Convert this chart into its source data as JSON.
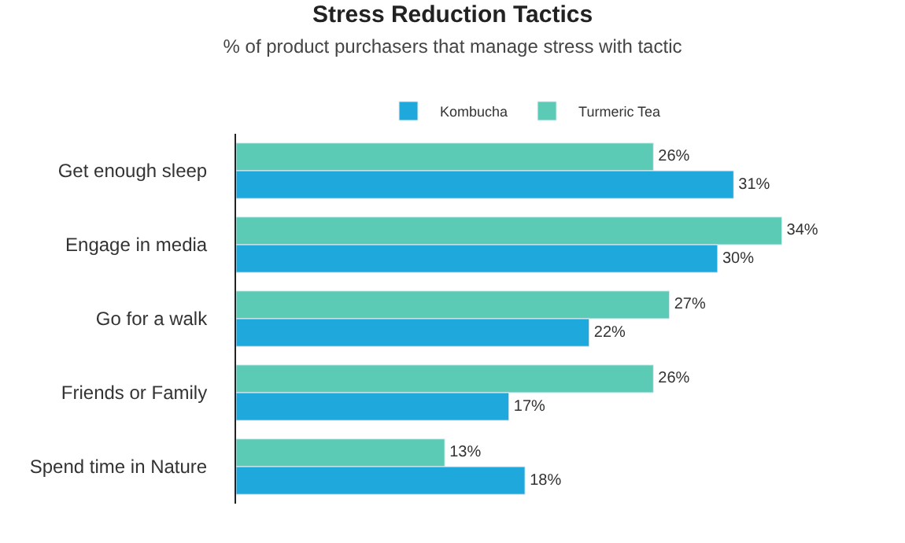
{
  "chart_data": {
    "type": "bar",
    "orientation": "horizontal",
    "title": "Stress Reduction Tactics",
    "subtitle": "% of product purchasers that manage stress with tactic",
    "categories": [
      "Get enough sleep",
      "Engage in media",
      "Go for a walk",
      "Friends or Family",
      "Spend time in Nature"
    ],
    "series": [
      {
        "name": "Turmeric Tea",
        "color": "#5ccbb5",
        "values": [
          26,
          34,
          27,
          26,
          13
        ],
        "value_labels": [
          "26%",
          "34%",
          "27%",
          "26%",
          "13%"
        ]
      },
      {
        "name": "Kombucha",
        "color": "#1fa8dc",
        "values": [
          31,
          30,
          22,
          17,
          18
        ],
        "value_labels": [
          "31%",
          "30%",
          "22%",
          "17%",
          "18%"
        ]
      }
    ],
    "legend": "top"
  }
}
